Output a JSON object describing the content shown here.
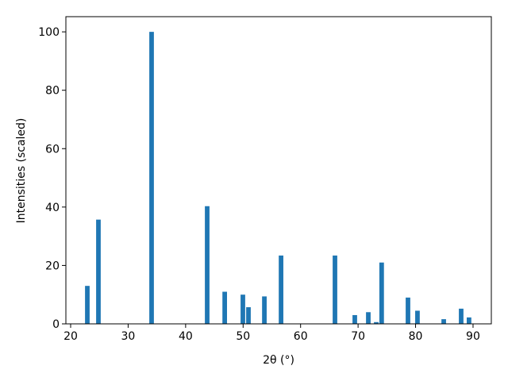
{
  "chart_data": {
    "type": "bar",
    "x": [
      22.9,
      24.83,
      34.08,
      43.75,
      46.8,
      49.96,
      50.93,
      53.7,
      56.6,
      65.98,
      69.43,
      71.78,
      73.16,
      74.1,
      78.68,
      80.33,
      84.9,
      87.93,
      89.3
    ],
    "values": [
      13,
      35.7,
      100,
      40.3,
      11,
      10,
      5.7,
      9.4,
      23.4,
      23.4,
      3,
      4,
      0.6,
      21,
      9,
      4.5,
      1.6,
      5.2,
      2.2
    ],
    "color": "#1f77b4",
    "xlabel": "2θ (°)",
    "ylabel": "Intensities (scaled)",
    "xlim": [
      19.17,
      93.18
    ],
    "xticks": [
      20,
      30,
      40,
      50,
      60,
      70,
      80,
      90
    ],
    "ylim": [
      0,
      105.2
    ],
    "yticks": [
      0,
      20,
      40,
      60,
      80,
      100
    ],
    "grid": false
  }
}
